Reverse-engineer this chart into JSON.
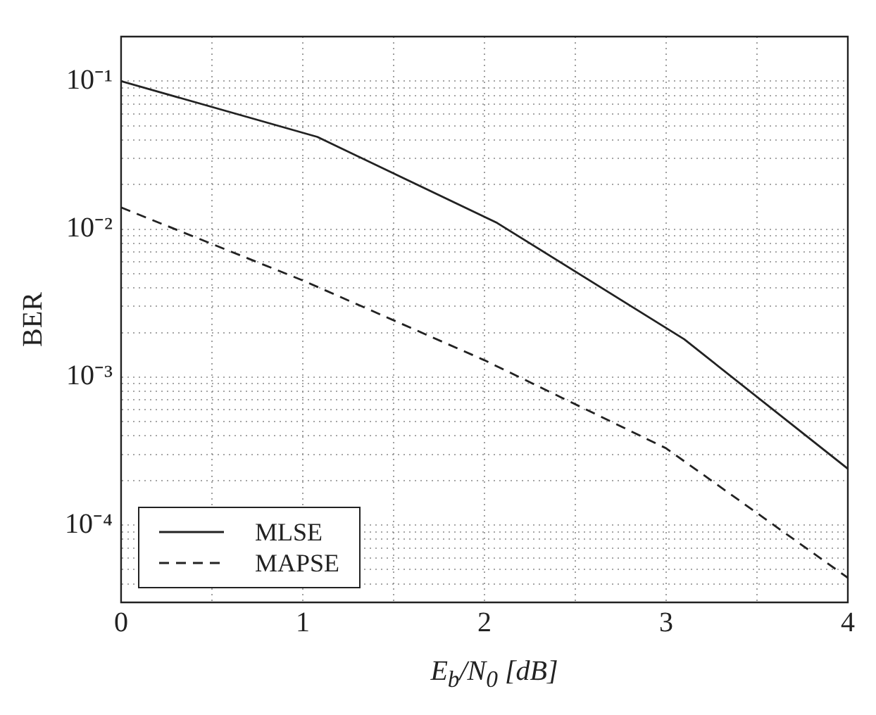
{
  "chart_data": {
    "type": "line",
    "xlabel": "E$_{b}$/N$_{0}$  [dB]",
    "ylabel": "BER",
    "log": "y",
    "grid": true,
    "legend": "bottom left",
    "xlim": [
      0,
      4
    ],
    "xticks": [
      0,
      {
        "value": 0.5,
        "label": null
      },
      1,
      {
        "value": 1.5,
        "label": null
      },
      2,
      {
        "value": 2.5,
        "label": null
      },
      3,
      {
        "value": 3.5,
        "label": null
      },
      4
    ],
    "ylim": [
      3e-05,
      0.2
    ],
    "yticks": [
      {
        "value": 3e-05,
        "label": null
      },
      {
        "value": 4e-05,
        "label": null
      },
      {
        "value": 5e-05,
        "label": null
      },
      {
        "value": 6e-05,
        "label": null
      },
      {
        "value": 7e-05,
        "label": null
      },
      {
        "value": 8e-05,
        "label": null
      },
      {
        "value": 9e-05,
        "label": null
      },
      {
        "value": 0.0001,
        "label": "10⁻⁴"
      },
      {
        "value": 0.0002,
        "label": null
      },
      {
        "value": 0.0003,
        "label": null
      },
      {
        "value": 0.0004,
        "label": null
      },
      {
        "value": 0.0005,
        "label": null
      },
      {
        "value": 0.0006,
        "label": null
      },
      {
        "value": 0.0007,
        "label": null
      },
      {
        "value": 0.0008,
        "label": null
      },
      {
        "value": 0.0009,
        "label": null
      },
      {
        "value": 0.001,
        "label": "10⁻³"
      },
      {
        "value": 0.002,
        "label": null
      },
      {
        "value": 0.003,
        "label": null
      },
      {
        "value": 0.004,
        "label": null
      },
      {
        "value": 0.005,
        "label": null
      },
      {
        "value": 0.006,
        "label": null
      },
      {
        "value": 0.007,
        "label": null
      },
      {
        "value": 0.008,
        "label": null
      },
      {
        "value": 0.009,
        "label": null
      },
      {
        "value": 0.01,
        "label": "10⁻²"
      },
      {
        "value": 0.02,
        "label": null
      },
      {
        "value": 0.03,
        "label": null
      },
      {
        "value": 0.04,
        "label": null
      },
      {
        "value": 0.05,
        "label": null
      },
      {
        "value": 0.06,
        "label": null
      },
      {
        "value": 0.07,
        "label": null
      },
      {
        "value": 0.08,
        "label": null
      },
      {
        "value": 0.09,
        "label": null
      },
      {
        "value": 0.1,
        "label": "10⁻¹"
      },
      {
        "value": 0.2,
        "label": null
      }
    ],
    "series": [
      {
        "name": "MLSE",
        "color": "#222222",
        "line_style": "solid",
        "x": [
          0,
          1.08,
          2.07,
          3.1,
          4
        ],
        "values": [
          0.1,
          0.042,
          0.011,
          0.0018,
          0.00024
        ]
      },
      {
        "name": "MAPSE",
        "color": "#222222",
        "line_style": "dashed",
        "x": [
          0,
          1,
          2,
          3,
          4
        ],
        "values": [
          0.014,
          0.0045,
          0.0013,
          0.00033,
          4.4e-05
        ]
      }
    ]
  }
}
